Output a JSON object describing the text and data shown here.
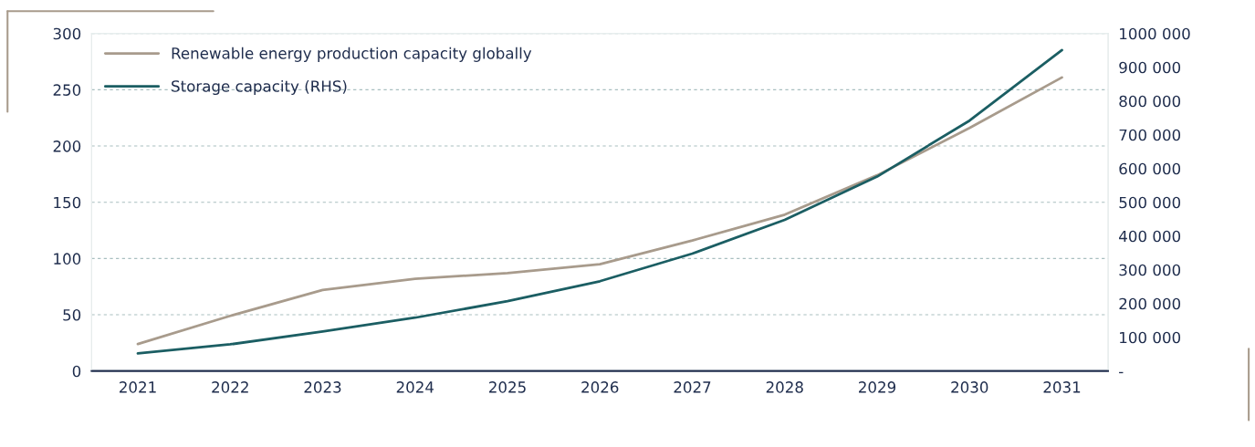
{
  "chart_data": {
    "type": "line",
    "categories": [
      "2021",
      "2022",
      "2023",
      "2024",
      "2025",
      "2026",
      "2027",
      "2028",
      "2029",
      "2030",
      "2031"
    ],
    "series": [
      {
        "name": "Renewable energy production capacity globally",
        "color": "#a89b8c",
        "values": [
          24,
          49,
          72,
          82,
          87,
          95,
          116,
          139,
          174,
          216,
          261
        ]
      },
      {
        "name": "Storage capacity (RHS)",
        "color": "#1b5e63",
        "axis": "y2",
        "values": [
          52000,
          79000,
          117000,
          158000,
          207000,
          266000,
          348000,
          448000,
          576000,
          742000,
          951000
        ]
      }
    ],
    "ylim": [
      0,
      300
    ],
    "yticks": [
      0,
      50,
      100,
      150,
      200,
      250,
      300
    ],
    "y2lim": [
      0,
      1000000
    ],
    "y2ticks": [
      {
        "value": 0,
        "label": "-"
      },
      {
        "value": 100000,
        "label": "100 000"
      },
      {
        "value": 200000,
        "label": "200 000"
      },
      {
        "value": 300000,
        "label": "300 000"
      },
      {
        "value": 400000,
        "label": "400 000"
      },
      {
        "value": 500000,
        "label": "500 000"
      },
      {
        "value": 600000,
        "label": "600 000"
      },
      {
        "value": 700000,
        "label": "700 000"
      },
      {
        "value": 800000,
        "label": "800 000"
      },
      {
        "value": 900000,
        "label": "900 000"
      },
      {
        "value": 1000000,
        "label": "1000 000"
      }
    ],
    "grid": "y",
    "legend": "top left",
    "marker": "none",
    "line_style": "solid"
  }
}
